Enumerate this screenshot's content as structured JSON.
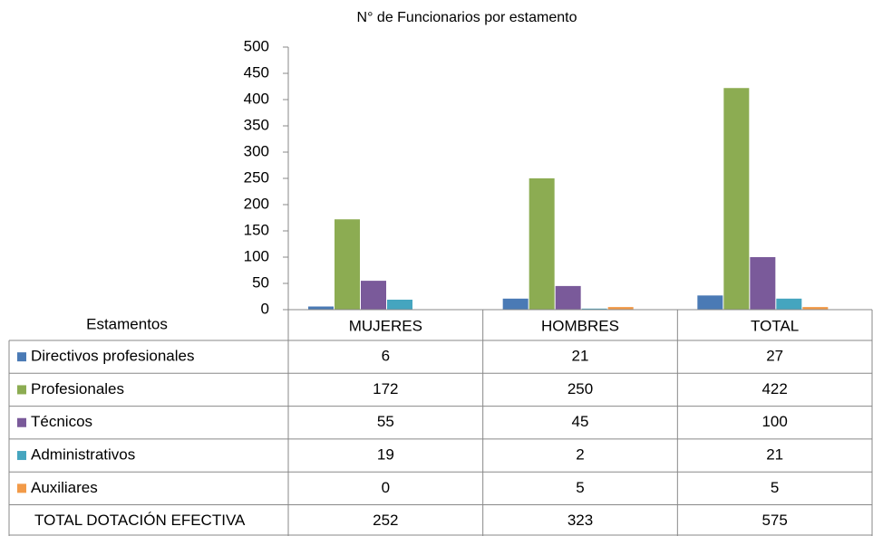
{
  "chart_data": {
    "type": "bar",
    "title": "N° de Funcionarios por estamento",
    "categories": [
      "MUJERES",
      "HOMBRES",
      "TOTAL"
    ],
    "series": [
      {
        "name": "Directivos profesionales",
        "color": "#4a7ab5",
        "values": [
          6,
          21,
          27
        ]
      },
      {
        "name": "Profesionales",
        "color": "#8cac52",
        "values": [
          172,
          250,
          422
        ]
      },
      {
        "name": "Técnicos",
        "color": "#7a5a9a",
        "values": [
          55,
          45,
          100
        ]
      },
      {
        "name": "Administrativos",
        "color": "#45a5bf",
        "values": [
          19,
          2,
          21
        ]
      },
      {
        "name": "Auxiliares",
        "color": "#f29a48",
        "values": [
          0,
          5,
          5
        ]
      }
    ],
    "table_header": "Estamentos",
    "total_row": {
      "label": "TOTAL DOTACIÓN EFECTIVA",
      "values": [
        252,
        323,
        575
      ]
    },
    "ylim": [
      0,
      500
    ],
    "yticks": [
      0,
      50,
      100,
      150,
      200,
      250,
      300,
      350,
      400,
      450,
      500
    ],
    "grid": false
  }
}
